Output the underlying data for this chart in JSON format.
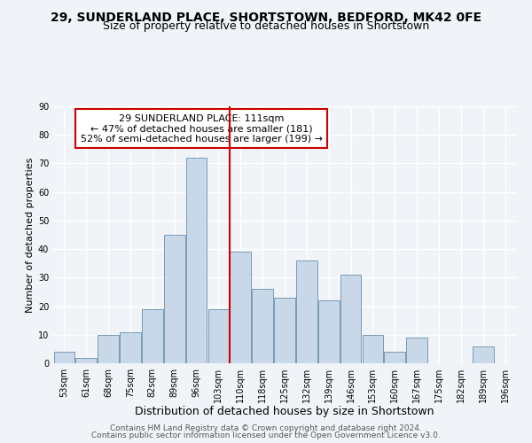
{
  "title1": "29, SUNDERLAND PLACE, SHORTSTOWN, BEDFORD, MK42 0FE",
  "title2": "Size of property relative to detached houses in Shortstown",
  "xlabel": "Distribution of detached houses by size in Shortstown",
  "ylabel": "Number of detached properties",
  "categories": [
    "53sqm",
    "61sqm",
    "68sqm",
    "75sqm",
    "82sqm",
    "89sqm",
    "96sqm",
    "103sqm",
    "110sqm",
    "118sqm",
    "125sqm",
    "132sqm",
    "139sqm",
    "146sqm",
    "153sqm",
    "160sqm",
    "167sqm",
    "175sqm",
    "182sqm",
    "189sqm",
    "196sqm"
  ],
  "values": [
    4,
    2,
    10,
    11,
    19,
    45,
    72,
    19,
    39,
    26,
    23,
    36,
    22,
    31,
    10,
    4,
    9,
    0,
    0,
    6,
    0
  ],
  "bar_color": "#c8d8e8",
  "bar_edge_color": "#7a9ab5",
  "vline_color": "#cc0000",
  "annotation_text": "29 SUNDERLAND PLACE: 111sqm\n← 47% of detached houses are smaller (181)\n52% of semi-detached houses are larger (199) →",
  "annotation_box_color": "#ffffff",
  "annotation_box_edge": "#cc0000",
  "ylim": [
    0,
    90
  ],
  "footer1": "Contains HM Land Registry data © Crown copyright and database right 2024.",
  "footer2": "Contains public sector information licensed under the Open Government Licence v3.0.",
  "bg_color": "#f0f4f8",
  "grid_color": "#ffffff",
  "title1_fontsize": 10,
  "title2_fontsize": 9,
  "xlabel_fontsize": 9,
  "ylabel_fontsize": 8,
  "tick_fontsize": 7,
  "footer_fontsize": 6.5,
  "ann_fontsize": 8
}
